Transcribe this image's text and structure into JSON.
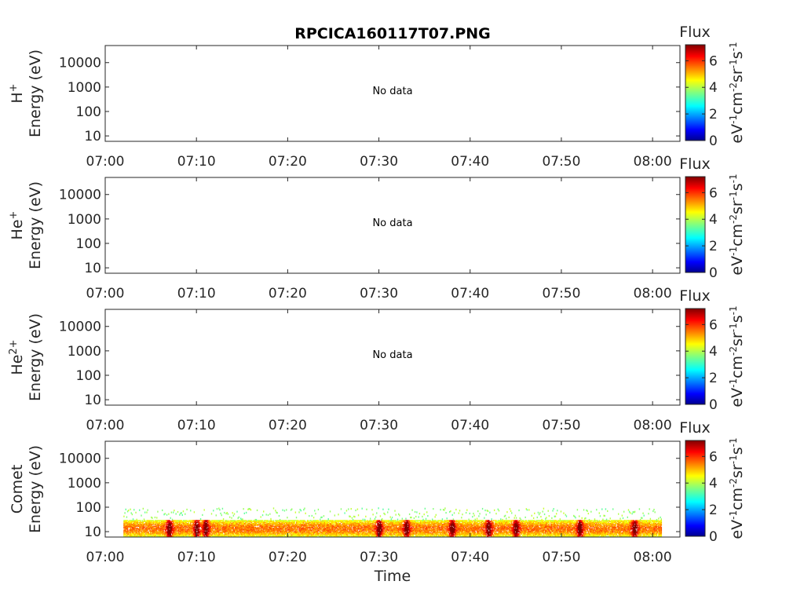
{
  "title": "RPCICA160117T07.PNG",
  "chart_data": {
    "type": "heatmap",
    "title": "RPCICA160117T07.PNG",
    "xlabel": "Time",
    "xlim": [
      "07:00",
      "08:03"
    ],
    "x_ticks": [
      "07:00",
      "07:10",
      "07:20",
      "07:30",
      "07:40",
      "07:50",
      "08:00"
    ],
    "y_scale": "log",
    "ylim": [
      6,
      50000
    ],
    "y_ticks": [
      10,
      100,
      1000,
      10000
    ],
    "y_tick_labels": [
      "10",
      "100",
      "1000",
      "10000"
    ],
    "colorbar": {
      "label": "Flux",
      "unit_base": [
        "eV",
        "cm",
        "sr",
        "s"
      ],
      "unit_exp": [
        "-1",
        "-2",
        "-1",
        "-1"
      ],
      "range": [
        0,
        7.2
      ],
      "ticks": [
        0,
        2,
        4,
        6
      ],
      "colormap": "jet"
    },
    "panels": [
      {
        "species": "H",
        "charge": "+",
        "ylabel": "Energy (eV)",
        "status": "No data"
      },
      {
        "species": "He",
        "charge": "+",
        "ylabel": "Energy (eV)",
        "status": "No data"
      },
      {
        "species": "He",
        "charge": "2+",
        "ylabel": "Energy (eV)",
        "status": "No data"
      },
      {
        "species": "Comet",
        "charge": "",
        "ylabel": "Energy (eV)",
        "status": "",
        "data_time_range": [
          "07:02",
          "08:01"
        ],
        "energy_core_range_eV": [
          6,
          30
        ],
        "energy_sparse_range_eV": [
          30,
          90
        ],
        "peak_log_flux": 6.5,
        "peak_times": [
          "07:07",
          "07:10",
          "07:11",
          "07:30",
          "07:33",
          "07:38",
          "07:42",
          "07:45",
          "07:52",
          "07:58"
        ]
      }
    ]
  }
}
